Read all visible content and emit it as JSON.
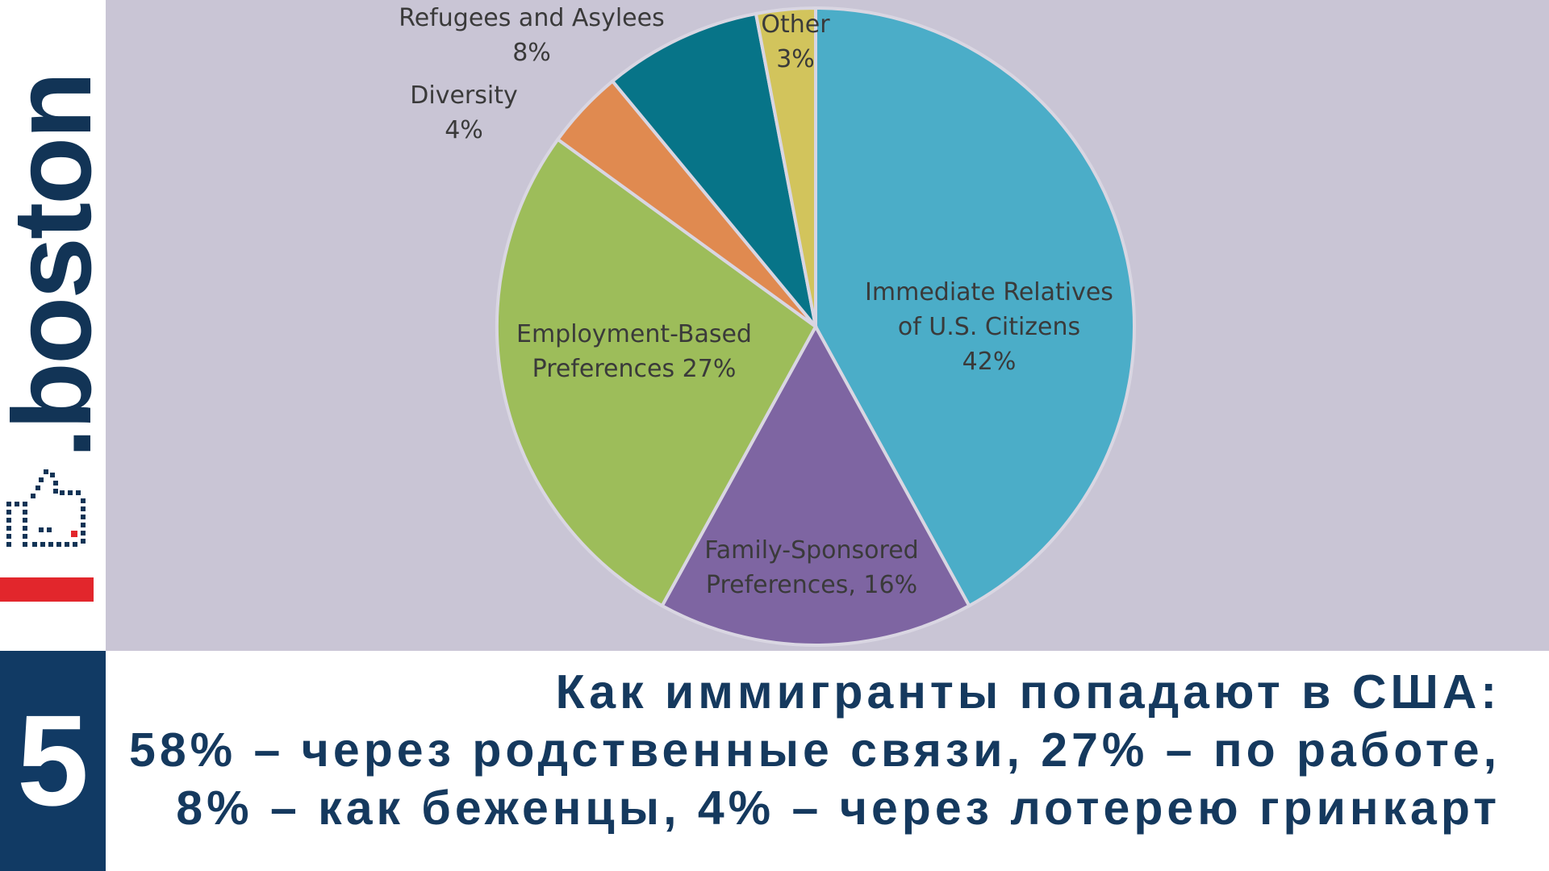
{
  "brand": {
    "name": ".boston",
    "number": "5"
  },
  "colors": {
    "immediate": "#4badc8",
    "family": "#7e65a2",
    "employment": "#9dbd5a",
    "diversity": "#e08a50",
    "refugees": "#077488",
    "other": "#d2c45c",
    "caption": "#15395e",
    "panel": "#c9c5d5"
  },
  "caption": {
    "line1": "Как иммигранты попадают в США:",
    "line2": "58% – через родственные связи, 27% – по работе,",
    "line3": "8% – как беженцы, 4% – через лотерею гринкарт"
  },
  "chart_data": {
    "type": "pie",
    "slices": [
      {
        "key": "immediate",
        "label_lines": [
          "Immediate Relatives",
          "of U.S. Citizens",
          "42%"
        ],
        "value": 42
      },
      {
        "key": "family",
        "label_lines": [
          "Family-Sponsored",
          "Preferences, 16%"
        ],
        "value": 16
      },
      {
        "key": "employment",
        "label_lines": [
          "Employment-Based",
          "Preferences 27%"
        ],
        "value": 27
      },
      {
        "key": "diversity",
        "label_lines": [
          "Diversity",
          "4%"
        ],
        "value": 4
      },
      {
        "key": "refugees",
        "label_lines": [
          "Refugees and Asylees",
          "8%"
        ],
        "value": 8
      },
      {
        "key": "other",
        "label_lines": [
          "Other",
          "3%"
        ],
        "value": 3
      }
    ]
  }
}
